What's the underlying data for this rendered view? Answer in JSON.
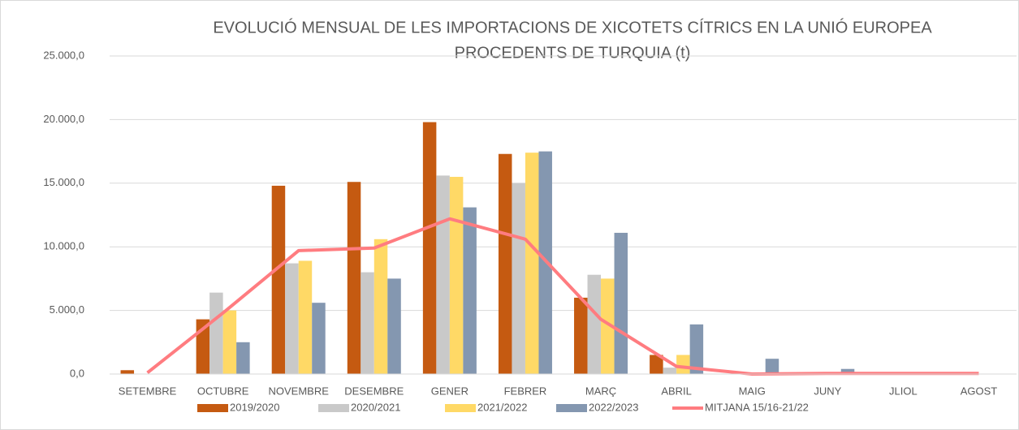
{
  "chart_data": {
    "type": "bar",
    "title": [
      "EVOLUCIÓ MENSUAL DE LES IMPORTACIONS DE XICOTETS CÍTRICS EN LA UNIÓ EUROPEA",
      "PROCEDENTS DE TURQUIA (t)"
    ],
    "categories": [
      "SETEMBRE",
      "OCTUBRE",
      "NOVEMBRE",
      "DESEMBRE",
      "GENER",
      "FEBRER",
      "MARÇ",
      "ABRIL",
      "MAIG",
      "JUNY",
      "JLIOL",
      "AGOST"
    ],
    "series": [
      {
        "name": "2019/2020",
        "color": "#c55a11",
        "values": [
          300,
          4300,
          14800,
          15100,
          19800,
          17300,
          6000,
          1500,
          0,
          0,
          0,
          0
        ]
      },
      {
        "name": "2020/2021",
        "color": "#c9c9c9",
        "values": [
          0,
          6400,
          8700,
          8000,
          15600,
          15000,
          7800,
          500,
          0,
          0,
          0,
          0
        ]
      },
      {
        "name": "2021/2022",
        "color": "#ffd966",
        "values": [
          0,
          5000,
          8900,
          10600,
          15500,
          17400,
          7500,
          1500,
          0,
          0,
          0,
          0
        ]
      },
      {
        "name": "2022/2023",
        "color": "#8497b0",
        "values": [
          0,
          2500,
          5600,
          7500,
          13100,
          17500,
          11100,
          3900,
          1200,
          400,
          0,
          0
        ]
      },
      {
        "name": "MITJANA 15/16-21/22",
        "color": "#ff7c80",
        "type": "line",
        "values": [
          100,
          4800,
          9700,
          9900,
          12200,
          10600,
          4300,
          600,
          0,
          50,
          50,
          50
        ]
      }
    ],
    "ylim": [
      0,
      25000
    ],
    "yticks": [
      {
        "value": 0,
        "label": "0,0"
      },
      {
        "value": 5000,
        "label": "5.000,0"
      },
      {
        "value": 10000,
        "label": "10.000,0"
      },
      {
        "value": 15000,
        "label": "15.000,0"
      },
      {
        "value": 20000,
        "label": "20.000,0"
      },
      {
        "value": 25000,
        "label": "25.000,0"
      }
    ],
    "grid": true,
    "legend": "bottom"
  }
}
